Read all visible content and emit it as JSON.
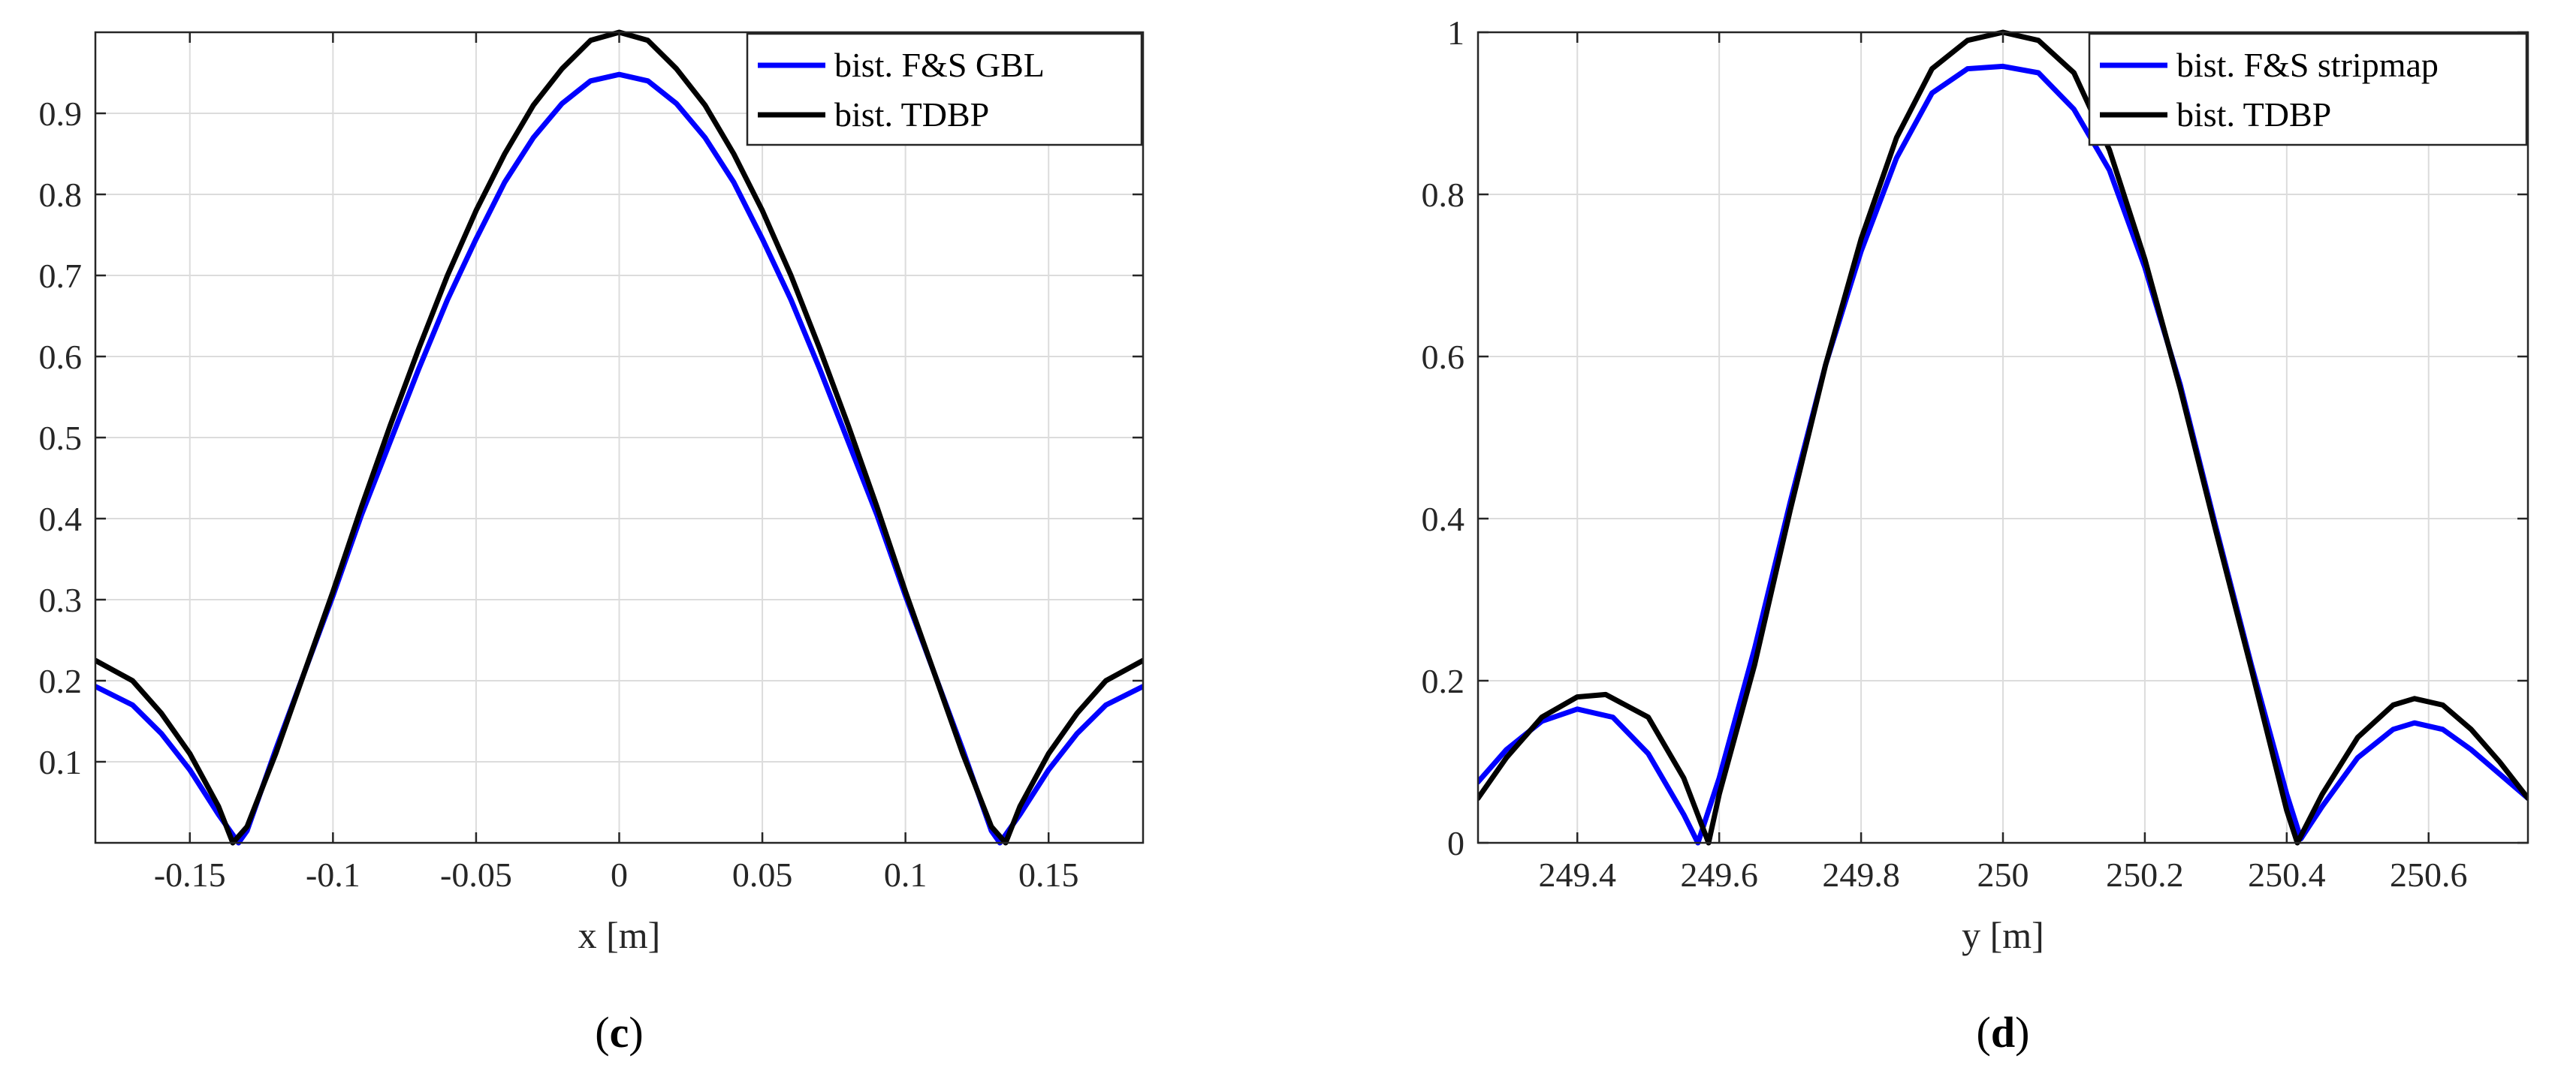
{
  "chart_data": [
    {
      "type": "line",
      "panel": "c",
      "panel_letter": "c",
      "xlabel": "x [m]",
      "ylabel": "",
      "xlim": [
        -0.183,
        0.183
      ],
      "ylim": [
        0,
        1
      ],
      "grid": true,
      "legend_position": "top-right",
      "xticks": [
        -0.15,
        -0.1,
        -0.05,
        0,
        0.05,
        0.1,
        0.15
      ],
      "xtick_labels": [
        "-0.15",
        "-0.1",
        "-0.05",
        "0",
        "0.05",
        "0.1",
        "0.15"
      ],
      "yticks": [
        0.1,
        0.2,
        0.3,
        0.4,
        0.5,
        0.6,
        0.7,
        0.8,
        0.9
      ],
      "ytick_labels": [
        "0.1",
        "0.2",
        "0.3",
        "0.4",
        "0.5",
        "0.6",
        "0.7",
        "0.8",
        "0.9"
      ],
      "series": [
        {
          "name": "bist. F&S GBL",
          "color": "#0000ff",
          "x": [
            -0.183,
            -0.17,
            -0.16,
            -0.15,
            -0.14,
            -0.133,
            -0.13,
            -0.12,
            -0.11,
            -0.1,
            -0.09,
            -0.08,
            -0.07,
            -0.06,
            -0.05,
            -0.04,
            -0.03,
            -0.02,
            -0.01,
            0,
            0.01,
            0.02,
            0.03,
            0.04,
            0.05,
            0.06,
            0.07,
            0.08,
            0.09,
            0.1,
            0.11,
            0.12,
            0.13,
            0.133,
            0.14,
            0.15,
            0.16,
            0.17,
            0.183
          ],
          "y": [
            0.193,
            0.17,
            0.135,
            0.09,
            0.035,
            0.0,
            0.015,
            0.115,
            0.21,
            0.305,
            0.405,
            0.495,
            0.585,
            0.67,
            0.745,
            0.815,
            0.87,
            0.912,
            0.94,
            0.948,
            0.94,
            0.912,
            0.87,
            0.815,
            0.745,
            0.67,
            0.585,
            0.495,
            0.405,
            0.305,
            0.21,
            0.115,
            0.015,
            0.0,
            0.035,
            0.09,
            0.135,
            0.17,
            0.193
          ]
        },
        {
          "name": "bist. TDBP",
          "color": "#000000",
          "x": [
            -0.183,
            -0.17,
            -0.16,
            -0.15,
            -0.14,
            -0.135,
            -0.13,
            -0.12,
            -0.11,
            -0.1,
            -0.09,
            -0.08,
            -0.07,
            -0.06,
            -0.05,
            -0.04,
            -0.03,
            -0.02,
            -0.01,
            0,
            0.01,
            0.02,
            0.03,
            0.04,
            0.05,
            0.06,
            0.07,
            0.08,
            0.09,
            0.1,
            0.11,
            0.12,
            0.13,
            0.135,
            0.14,
            0.15,
            0.16,
            0.17,
            0.183
          ],
          "y": [
            0.225,
            0.2,
            0.16,
            0.11,
            0.045,
            0.0,
            0.02,
            0.11,
            0.21,
            0.31,
            0.415,
            0.515,
            0.61,
            0.7,
            0.78,
            0.85,
            0.91,
            0.955,
            0.99,
            1.0,
            0.99,
            0.955,
            0.91,
            0.85,
            0.78,
            0.7,
            0.61,
            0.515,
            0.415,
            0.31,
            0.21,
            0.11,
            0.02,
            0.0,
            0.045,
            0.11,
            0.16,
            0.2,
            0.225
          ]
        }
      ]
    },
    {
      "type": "line",
      "panel": "d",
      "panel_letter": "d",
      "xlabel": "y [m]",
      "ylabel": "",
      "xlim": [
        249.26,
        250.74
      ],
      "ylim": [
        0,
        1
      ],
      "grid": true,
      "legend_position": "top-right",
      "xticks": [
        249.4,
        249.6,
        249.8,
        250,
        250.2,
        250.4,
        250.6
      ],
      "xtick_labels": [
        "249.4",
        "249.6",
        "249.8",
        "250",
        "250.2",
        "250.4",
        "250.6"
      ],
      "yticks": [
        0,
        0.2,
        0.4,
        0.6,
        0.8,
        1
      ],
      "ytick_labels": [
        "0",
        "0.2",
        "0.4",
        "0.6",
        "0.8",
        "1"
      ],
      "series": [
        {
          "name": "bist. F&S stripmap",
          "color": "#0000ff",
          "x": [
            249.26,
            249.3,
            249.35,
            249.4,
            249.45,
            249.5,
            249.55,
            249.57,
            249.6,
            249.65,
            249.7,
            249.75,
            249.8,
            249.85,
            249.9,
            249.95,
            250.0,
            250.05,
            250.1,
            250.15,
            250.2,
            250.25,
            250.3,
            250.35,
            250.4,
            250.42,
            250.45,
            250.5,
            250.55,
            250.58,
            250.62,
            250.66,
            250.7,
            250.74
          ],
          "y": [
            0.075,
            0.115,
            0.15,
            0.165,
            0.155,
            0.11,
            0.035,
            0.0,
            0.08,
            0.24,
            0.42,
            0.59,
            0.73,
            0.845,
            0.925,
            0.955,
            0.958,
            0.95,
            0.905,
            0.83,
            0.71,
            0.565,
            0.39,
            0.22,
            0.06,
            0.005,
            0.045,
            0.105,
            0.14,
            0.148,
            0.14,
            0.115,
            0.085,
            0.055
          ]
        },
        {
          "name": "bist. TDBP",
          "color": "#000000",
          "x": [
            249.26,
            249.3,
            249.35,
            249.4,
            249.44,
            249.5,
            249.55,
            249.585,
            249.6,
            249.65,
            249.7,
            249.75,
            249.8,
            249.85,
            249.9,
            249.95,
            250.0,
            250.05,
            250.1,
            250.15,
            250.2,
            250.25,
            250.3,
            250.35,
            250.4,
            250.415,
            250.45,
            250.5,
            250.55,
            250.58,
            250.62,
            250.66,
            250.7,
            250.74
          ],
          "y": [
            0.055,
            0.105,
            0.155,
            0.18,
            0.183,
            0.155,
            0.08,
            0.0,
            0.06,
            0.22,
            0.41,
            0.59,
            0.745,
            0.87,
            0.955,
            0.99,
            1.0,
            0.99,
            0.95,
            0.855,
            0.72,
            0.56,
            0.385,
            0.215,
            0.04,
            0.0,
            0.06,
            0.13,
            0.17,
            0.178,
            0.17,
            0.14,
            0.1,
            0.055
          ]
        }
      ]
    }
  ]
}
